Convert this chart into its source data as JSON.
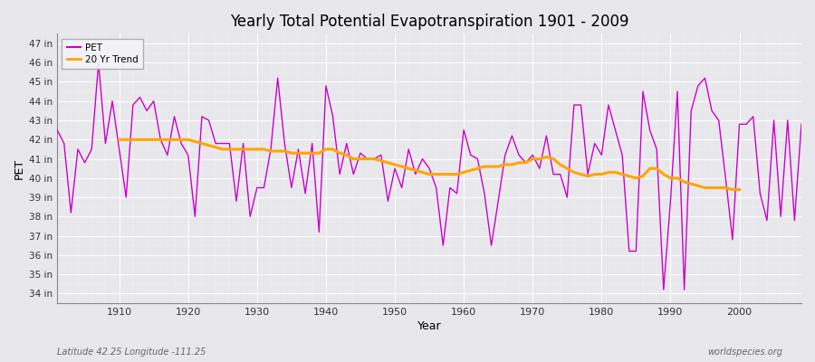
{
  "title": "Yearly Total Potential Evapotranspiration 1901 - 2009",
  "xlabel": "Year",
  "ylabel": "PET",
  "subtitle_left": "Latitude 42.25 Longitude -111.25",
  "subtitle_right": "worldspecies.org",
  "fig_bg_color": "#e8e8ec",
  "plot_bg_color": "#e8e8ec",
  "grid_color": "#ffffff",
  "pet_color": "#cc00cc",
  "trend_color": "#ffa500",
  "years": [
    1901,
    1902,
    1903,
    1904,
    1905,
    1906,
    1907,
    1908,
    1909,
    1910,
    1911,
    1912,
    1913,
    1914,
    1915,
    1916,
    1917,
    1918,
    1919,
    1920,
    1921,
    1922,
    1923,
    1924,
    1925,
    1926,
    1927,
    1928,
    1929,
    1930,
    1931,
    1932,
    1933,
    1934,
    1935,
    1936,
    1937,
    1938,
    1939,
    1940,
    1941,
    1942,
    1943,
    1944,
    1945,
    1946,
    1947,
    1948,
    1949,
    1950,
    1951,
    1952,
    1953,
    1954,
    1955,
    1956,
    1957,
    1958,
    1959,
    1960,
    1961,
    1962,
    1963,
    1964,
    1965,
    1966,
    1967,
    1968,
    1969,
    1970,
    1971,
    1972,
    1973,
    1974,
    1975,
    1976,
    1977,
    1978,
    1979,
    1980,
    1981,
    1982,
    1983,
    1984,
    1985,
    1986,
    1987,
    1988,
    1989,
    1990,
    1991,
    1992,
    1993,
    1994,
    1995,
    1996,
    1997,
    1998,
    1999,
    2000,
    2001,
    2002,
    2003,
    2004,
    2005,
    2006,
    2007,
    2008,
    2009
  ],
  "pet_values": [
    42.5,
    41.8,
    38.2,
    41.5,
    40.8,
    41.5,
    46.0,
    41.8,
    44.0,
    41.5,
    39.0,
    43.8,
    44.2,
    43.5,
    44.0,
    42.0,
    41.2,
    43.2,
    41.8,
    41.2,
    38.0,
    43.2,
    43.0,
    41.8,
    41.8,
    41.8,
    38.8,
    41.8,
    38.0,
    39.5,
    39.5,
    41.5,
    45.2,
    41.8,
    39.5,
    41.5,
    39.2,
    41.8,
    37.2,
    44.8,
    43.2,
    40.2,
    41.8,
    40.2,
    41.3,
    41.0,
    41.0,
    41.2,
    38.8,
    40.5,
    39.5,
    41.5,
    40.2,
    41.0,
    40.5,
    39.5,
    36.5,
    39.5,
    39.2,
    42.5,
    41.2,
    41.0,
    39.2,
    36.5,
    38.8,
    41.2,
    42.2,
    41.2,
    40.8,
    41.2,
    40.5,
    42.2,
    40.2,
    40.2,
    39.0,
    43.8,
    43.8,
    40.2,
    41.8,
    41.2,
    43.8,
    42.5,
    41.2,
    36.2,
    36.2,
    44.5,
    42.5,
    41.5,
    34.2,
    38.8,
    44.5,
    34.2,
    43.5,
    44.8,
    45.2,
    43.5,
    43.0,
    40.0,
    36.8,
    42.8,
    42.8,
    43.2,
    39.2,
    37.8,
    43.0,
    38.0,
    43.0,
    37.8,
    42.8
  ],
  "trend_values": [
    null,
    null,
    null,
    null,
    null,
    null,
    null,
    null,
    null,
    42.0,
    42.0,
    42.0,
    42.0,
    42.0,
    42.0,
    42.0,
    42.0,
    42.0,
    42.0,
    42.0,
    41.9,
    41.8,
    41.7,
    41.6,
    41.5,
    41.5,
    41.5,
    41.5,
    41.5,
    41.5,
    41.5,
    41.4,
    41.4,
    41.4,
    41.3,
    41.3,
    41.3,
    41.3,
    41.3,
    41.5,
    41.5,
    41.3,
    41.2,
    41.0,
    41.0,
    41.0,
    41.0,
    40.9,
    40.8,
    40.7,
    40.6,
    40.5,
    40.4,
    40.3,
    40.2,
    40.2,
    40.2,
    40.2,
    40.2,
    40.3,
    40.4,
    40.5,
    40.6,
    40.6,
    40.6,
    40.7,
    40.7,
    40.8,
    40.8,
    41.0,
    41.0,
    41.1,
    41.0,
    40.7,
    40.5,
    40.3,
    40.2,
    40.1,
    40.2,
    40.2,
    40.3,
    40.3,
    40.2,
    40.1,
    40.0,
    40.1,
    40.5,
    40.5,
    40.2,
    40.0,
    40.0,
    39.8,
    39.7,
    39.6,
    39.5,
    39.5,
    39.5,
    39.5,
    39.4,
    39.4,
    null,
    null,
    null,
    null,
    null,
    null,
    null,
    null,
    null
  ],
  "ylim": [
    33.5,
    47.5
  ],
  "yticks": [
    34,
    35,
    36,
    37,
    38,
    39,
    40,
    41,
    42,
    43,
    44,
    45,
    46,
    47
  ],
  "xticks": [
    1910,
    1920,
    1930,
    1940,
    1950,
    1960,
    1970,
    1980,
    1990,
    2000
  ],
  "xlim": [
    1901,
    2009
  ]
}
